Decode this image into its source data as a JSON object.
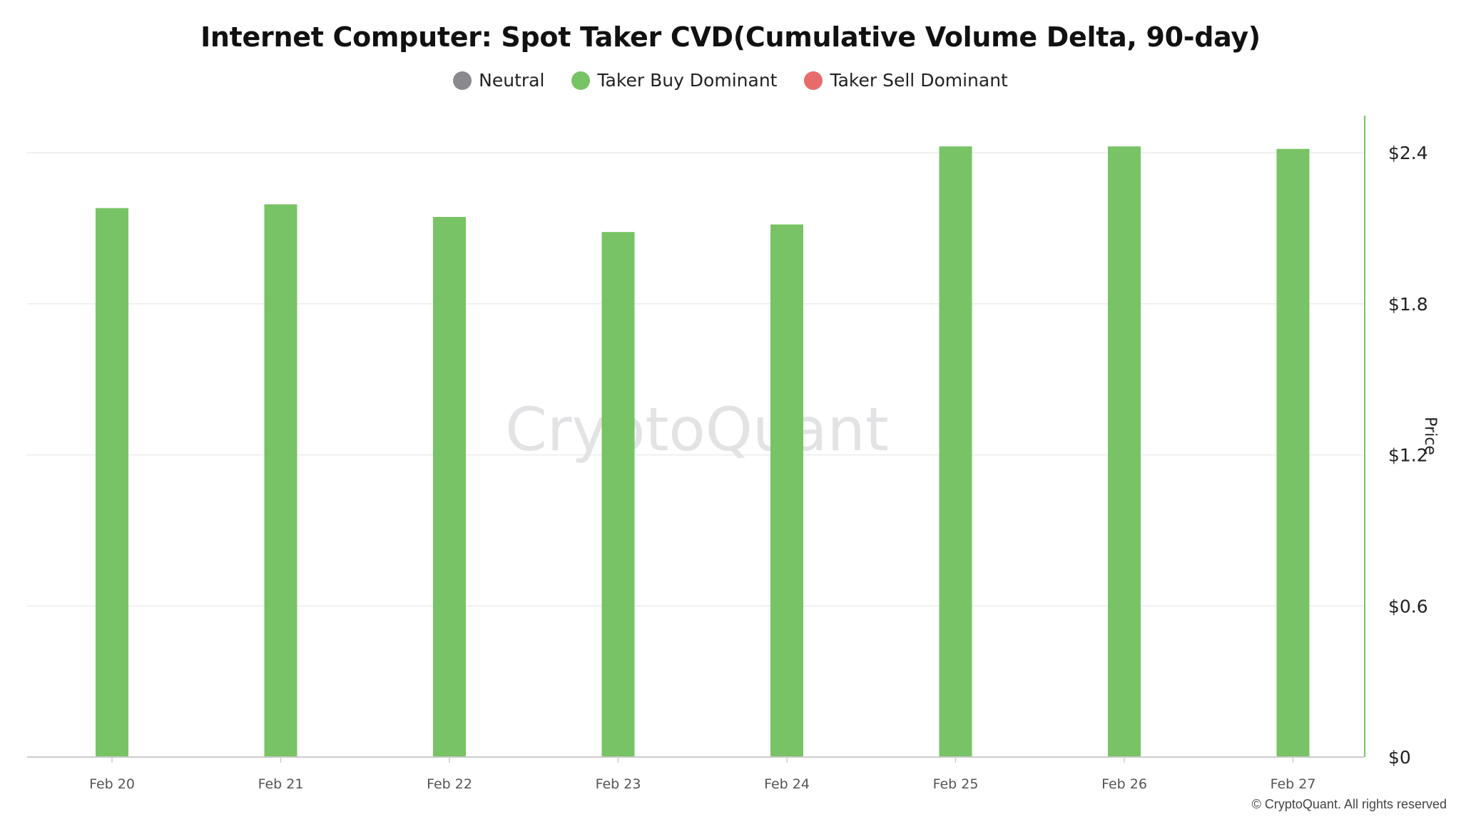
{
  "chart_data": {
    "type": "bar",
    "title": "Internet Computer: Spot Taker CVD(Cumulative Volume Delta, 90-day)",
    "legend": [
      {
        "name": "Neutral",
        "color": "#8a8a8e"
      },
      {
        "name": "Taker Buy Dominant",
        "color": "#77c365"
      },
      {
        "name": "Taker Sell Dominant",
        "color": "#e86b6b"
      }
    ],
    "categories": [
      "Feb 20",
      "Feb 21",
      "Feb 22",
      "Feb 23",
      "Feb 24",
      "Feb 25",
      "Feb 26",
      "Feb 27"
    ],
    "values": [
      2.18,
      2.195,
      2.145,
      2.085,
      2.115,
      2.425,
      2.425,
      2.415
    ],
    "bar_state": [
      "Taker Buy Dominant",
      "Taker Buy Dominant",
      "Taker Buy Dominant",
      "Taker Buy Dominant",
      "Taker Buy Dominant",
      "Taker Buy Dominant",
      "Taker Buy Dominant",
      "Taker Buy Dominant"
    ],
    "xlabel": "",
    "ylabel": "Price",
    "ylim": [
      0,
      2.55
    ],
    "yticks": [
      0,
      0.6,
      1.2,
      1.8,
      2.4
    ],
    "ytick_labels": [
      "$0",
      "$0.6",
      "$1.2",
      "$1.8",
      "$2.4"
    ],
    "y_axis_side": "right",
    "grid": true
  },
  "watermark": "CryptoQuant",
  "footer": {
    "copyright": "© CryptoQuant. All rights reserved"
  },
  "colors": {
    "bar": "#77c365",
    "axis_line": "#77c365",
    "grid": "#ececec",
    "baseline": "#cccccc",
    "watermark": "#e3e3e6"
  }
}
